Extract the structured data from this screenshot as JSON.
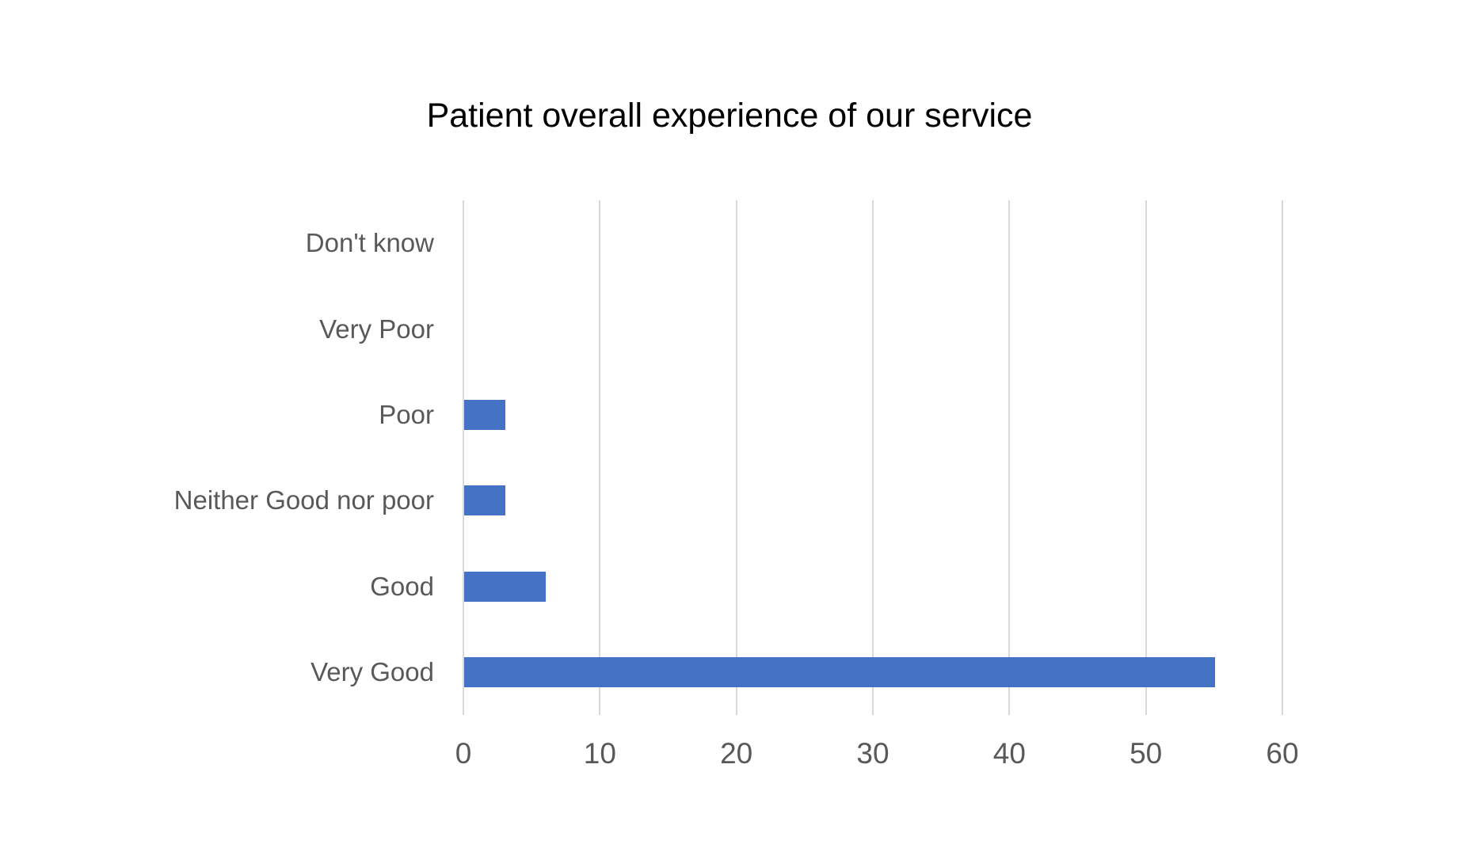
{
  "chart_data": {
    "type": "bar",
    "orientation": "horizontal",
    "title": "Patient overall experience of our service",
    "categories": [
      "Don't know",
      "Very Poor",
      "Poor",
      "Neither Good nor poor",
      "Good",
      "Very Good"
    ],
    "values": [
      0,
      0,
      3,
      3,
      6,
      55
    ],
    "x_ticks": [
      0,
      10,
      20,
      30,
      40,
      50,
      60
    ],
    "xlim": [
      0,
      60
    ],
    "xlabel": "",
    "ylabel": "",
    "grid": "vertical-gridlines-on",
    "legend": "none",
    "colors": {
      "bar": "#4472C4",
      "gridline": "#D9D9D9",
      "axis_line": "#D9D9D9",
      "tick_label": "#595959",
      "category_label": "#595959",
      "title": "#000000",
      "background": "#FFFFFF"
    }
  }
}
